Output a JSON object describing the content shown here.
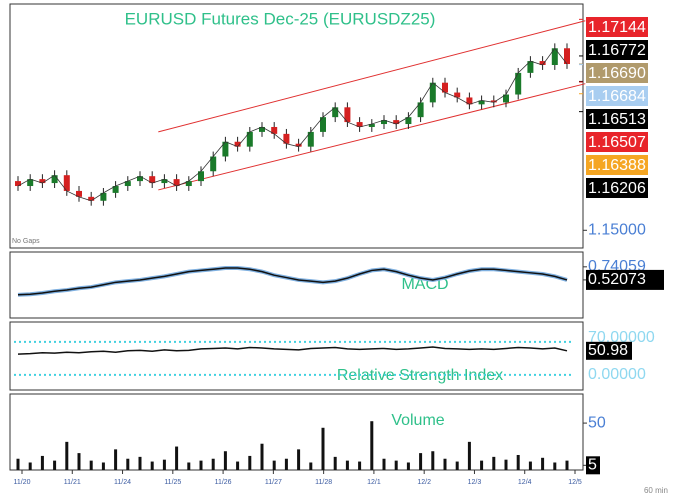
{
  "chart_data": {
    "type": "candlestick",
    "title": "EURUSD Futures Dec-25 (EURUSDZ25)",
    "note": "No Gaps",
    "timeframe": "60 min",
    "ylim": [
      1.1482,
      1.173
    ],
    "yticks": [
      {
        "value": 1.15,
        "label": "1.15000"
      }
    ],
    "price_labels": [
      1.17144,
      1.16772,
      {
        "value": 1.1669,
        "label": "1.16690"
      },
      1.16684,
      1.16513,
      1.16507,
      1.16388,
      1.16206
    ],
    "price_label_colors": [
      "#e8242a",
      "#000000",
      "#b09a6c",
      "#a8cdf0",
      "#000000",
      "#e8242a",
      "#f5a623",
      "#000000"
    ],
    "up_color": "#1a7a2a",
    "down_color": "#d42020",
    "categories": [
      "11/20",
      "11/21",
      "11/24",
      "11/25",
      "11/26",
      "11/27",
      "11/28",
      "12/1",
      "12/2",
      "12/3",
      "12/4",
      "12/5"
    ],
    "candles": [
      {
        "o": 1.155,
        "h": 1.1555,
        "l": 1.154,
        "c": 1.1545
      },
      {
        "o": 1.1545,
        "h": 1.1557,
        "l": 1.154,
        "c": 1.1552
      },
      {
        "o": 1.1552,
        "h": 1.1557,
        "l": 1.1543,
        "c": 1.1548
      },
      {
        "o": 1.1548,
        "h": 1.1561,
        "l": 1.1543,
        "c": 1.1556
      },
      {
        "o": 1.1556,
        "h": 1.1561,
        "l": 1.1535,
        "c": 1.154
      },
      {
        "o": 1.154,
        "h": 1.1545,
        "l": 1.1529,
        "c": 1.1534
      },
      {
        "o": 1.1534,
        "h": 1.1539,
        "l": 1.1525,
        "c": 1.153
      },
      {
        "o": 1.153,
        "h": 1.1543,
        "l": 1.1525,
        "c": 1.1538
      },
      {
        "o": 1.1538,
        "h": 1.155,
        "l": 1.1533,
        "c": 1.1545
      },
      {
        "o": 1.1545,
        "h": 1.1555,
        "l": 1.154,
        "c": 1.155
      },
      {
        "o": 1.155,
        "h": 1.156,
        "l": 1.1545,
        "c": 1.1555
      },
      {
        "o": 1.1555,
        "h": 1.156,
        "l": 1.1543,
        "c": 1.1548
      },
      {
        "o": 1.1548,
        "h": 1.1557,
        "l": 1.1543,
        "c": 1.1552
      },
      {
        "o": 1.1552,
        "h": 1.1557,
        "l": 1.154,
        "c": 1.1545
      },
      {
        "o": 1.1545,
        "h": 1.1555,
        "l": 1.154,
        "c": 1.155
      },
      {
        "o": 1.155,
        "h": 1.1565,
        "l": 1.1545,
        "c": 1.156
      },
      {
        "o": 1.156,
        "h": 1.158,
        "l": 1.1555,
        "c": 1.1575
      },
      {
        "o": 1.1575,
        "h": 1.1595,
        "l": 1.157,
        "c": 1.159
      },
      {
        "o": 1.159,
        "h": 1.1595,
        "l": 1.158,
        "c": 1.1585
      },
      {
        "o": 1.1585,
        "h": 1.1605,
        "l": 1.158,
        "c": 1.16
      },
      {
        "o": 1.16,
        "h": 1.161,
        "l": 1.1595,
        "c": 1.1605
      },
      {
        "o": 1.1605,
        "h": 1.161,
        "l": 1.1593,
        "c": 1.1598
      },
      {
        "o": 1.1598,
        "h": 1.1603,
        "l": 1.1583,
        "c": 1.1588
      },
      {
        "o": 1.1588,
        "h": 1.1593,
        "l": 1.158,
        "c": 1.1585
      },
      {
        "o": 1.1585,
        "h": 1.1605,
        "l": 1.158,
        "c": 1.16
      },
      {
        "o": 1.16,
        "h": 1.162,
        "l": 1.1595,
        "c": 1.1615
      },
      {
        "o": 1.1615,
        "h": 1.163,
        "l": 1.161,
        "c": 1.1625
      },
      {
        "o": 1.1625,
        "h": 1.163,
        "l": 1.1605,
        "c": 1.161
      },
      {
        "o": 1.161,
        "h": 1.1615,
        "l": 1.16,
        "c": 1.1605
      },
      {
        "o": 1.1605,
        "h": 1.1613,
        "l": 1.16,
        "c": 1.1608
      },
      {
        "o": 1.1608,
        "h": 1.1617,
        "l": 1.1603,
        "c": 1.1612
      },
      {
        "o": 1.1612,
        "h": 1.1617,
        "l": 1.1603,
        "c": 1.1608
      },
      {
        "o": 1.1608,
        "h": 1.162,
        "l": 1.1603,
        "c": 1.1615
      },
      {
        "o": 1.1615,
        "h": 1.1635,
        "l": 1.161,
        "c": 1.163
      },
      {
        "o": 1.163,
        "h": 1.1655,
        "l": 1.1625,
        "c": 1.165
      },
      {
        "o": 1.165,
        "h": 1.1655,
        "l": 1.1635,
        "c": 1.164
      },
      {
        "o": 1.164,
        "h": 1.1645,
        "l": 1.163,
        "c": 1.1635
      },
      {
        "o": 1.1635,
        "h": 1.164,
        "l": 1.1623,
        "c": 1.1628
      },
      {
        "o": 1.1628,
        "h": 1.1637,
        "l": 1.1623,
        "c": 1.1632
      },
      {
        "o": 1.1632,
        "h": 1.1637,
        "l": 1.1625,
        "c": 1.163
      },
      {
        "o": 1.163,
        "h": 1.1643,
        "l": 1.1625,
        "c": 1.1638
      },
      {
        "o": 1.1638,
        "h": 1.1665,
        "l": 1.1633,
        "c": 1.166
      },
      {
        "o": 1.166,
        "h": 1.1677,
        "l": 1.1655,
        "c": 1.1672
      },
      {
        "o": 1.1672,
        "h": 1.1677,
        "l": 1.1663,
        "c": 1.1668
      },
      {
        "o": 1.1668,
        "h": 1.169,
        "l": 1.1663,
        "c": 1.1685
      },
      {
        "o": 1.1685,
        "h": 1.169,
        "l": 1.1664,
        "c": 1.1669
      }
    ],
    "channel_upper": {
      "x": [
        11.5,
        46.5
      ],
      "y": [
        1.16,
        1.1713
      ]
    },
    "channel_lower": {
      "x": [
        11.5,
        46.5
      ],
      "y": [
        1.1541,
        1.1649
      ]
    },
    "macd": {
      "title": "MACD",
      "ylim": [
        -0.12,
        0.99
      ],
      "yticks": [
        0.74059,
        0.52073
      ],
      "values": [
        0.27,
        0.28,
        0.3,
        0.33,
        0.35,
        0.38,
        0.4,
        0.44,
        0.48,
        0.5,
        0.52,
        0.55,
        0.58,
        0.62,
        0.66,
        0.68,
        0.7,
        0.72,
        0.72,
        0.7,
        0.66,
        0.6,
        0.56,
        0.52,
        0.5,
        0.48,
        0.5,
        0.55,
        0.62,
        0.68,
        0.7,
        0.66,
        0.6,
        0.55,
        0.52,
        0.56,
        0.62,
        0.67,
        0.7,
        0.7,
        0.68,
        0.66,
        0.64,
        0.62,
        0.58,
        0.52
      ]
    },
    "rsi": {
      "title": "Relative Strength Index",
      "ylim": [
        -32,
        112
      ],
      "yticks": [
        {
          "value": 70,
          "label": "70.00000"
        },
        {
          "value": 0,
          "label": "0.00000"
        }
      ],
      "last": 50.98,
      "values": [
        44,
        45,
        47,
        46,
        48,
        47,
        49,
        50,
        48,
        51,
        52,
        50,
        53,
        51,
        52,
        55,
        56,
        57,
        55,
        58,
        57,
        55,
        54,
        53,
        56,
        57,
        58,
        55,
        54,
        55,
        56,
        54,
        55,
        57,
        59,
        56,
        55,
        54,
        55,
        54,
        56,
        58,
        57,
        55,
        57,
        51
      ]
    },
    "volume": {
      "title": "Volume",
      "ylim": [
        0,
        81
      ],
      "yticks": [
        50,
        5
      ],
      "values": [
        12,
        8,
        15,
        10,
        30,
        18,
        10,
        8,
        22,
        12,
        14,
        9,
        11,
        25,
        8,
        10,
        12,
        20,
        9,
        15,
        28,
        10,
        12,
        22,
        8,
        45,
        14,
        10,
        9,
        52,
        12,
        10,
        8,
        18,
        20,
        12,
        9,
        30,
        10,
        14,
        11,
        16,
        9,
        13,
        8,
        10
      ]
    }
  }
}
